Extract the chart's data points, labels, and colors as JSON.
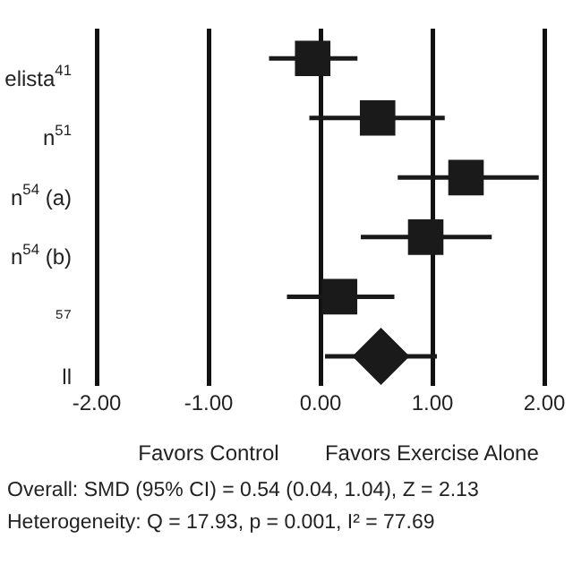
{
  "chart_data": {
    "type": "scatter",
    "orientation": "horizontal",
    "categories": [
      "elista$^{41}$",
      "n$^{51}$",
      "n$^{54}$ (a)",
      "n$^{54}$ (b)",
      "⁵⁷",
      "ll"
    ],
    "series": [
      {
        "color": "#1a1a1a",
        "marker": "square",
        "values": [
          -0.07,
          0.51,
          1.3,
          0.94,
          0.17,
          null
        ],
        "errors": [
          [
            -0.46,
            0.33
          ],
          [
            -0.1,
            1.11
          ],
          [
            0.69,
            1.95
          ],
          [
            0.36,
            1.53
          ],
          [
            -0.3,
            0.66
          ],
          null
        ]
      },
      {
        "color": "#1a1a1a",
        "marker": "diamond",
        "values": [
          null,
          null,
          null,
          null,
          null,
          0.54
        ],
        "errors": [
          null,
          null,
          null,
          null,
          null,
          [
            0.04,
            1.04
          ]
        ]
      }
    ],
    "xlim": [
      -2,
      2
    ],
    "xticks": [
      {
        "value": -2,
        "label": "-2.00"
      },
      {
        "value": -1,
        "label": "-1.00"
      },
      {
        "value": 0,
        "label": "0.00"
      },
      {
        "value": 1,
        "label": "1.00"
      },
      {
        "value": 2,
        "label": "2.00"
      }
    ],
    "grid": "x",
    "legend": false,
    "annotations": [
      "Favors Control",
      "Favors Exercise Alone",
      "Overall: SMD (95% CI) = 0.54 (0.04, 1.04), Z = 2.13",
      "Heterogeneity: Q = 17.93, p = 0.001, I² = 77.69"
    ]
  }
}
